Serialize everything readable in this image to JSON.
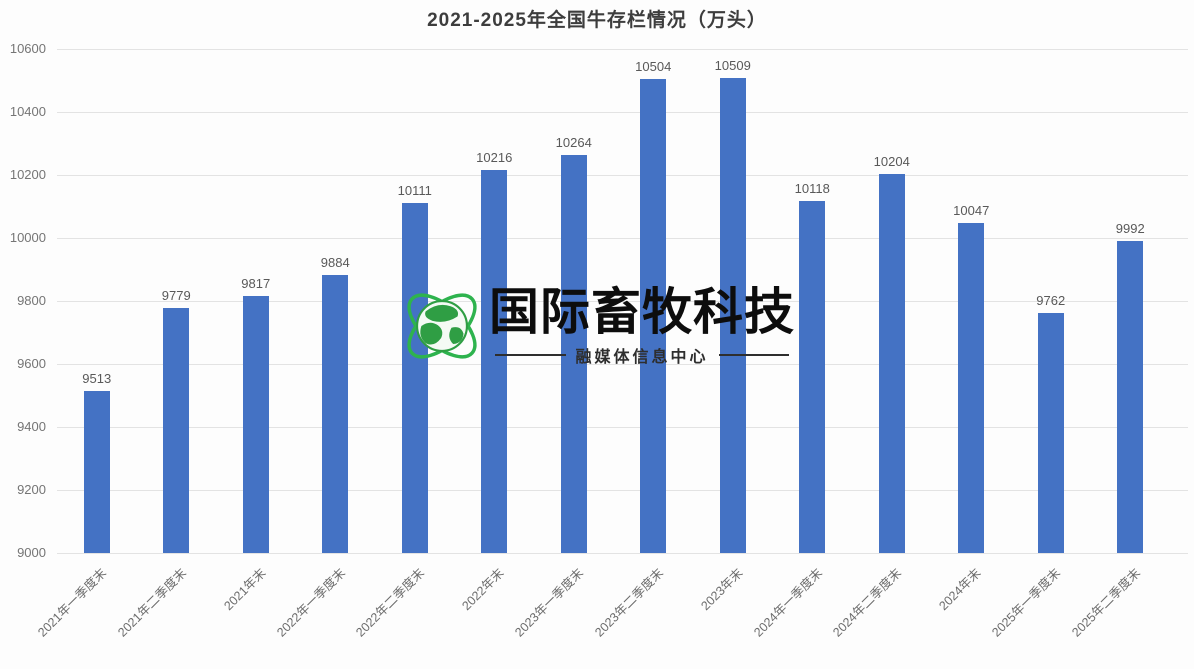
{
  "chart_data": {
    "type": "bar",
    "title": "2021-2025年全国牛存栏情况（万头）",
    "categories": [
      "2021年一季度末",
      "2021年二季度末",
      "2021年末",
      "2022年一季度末",
      "2022年二季度末",
      "2022年末",
      "2023年一季度末",
      "2023年二季度末",
      "2023年末",
      "2024年一季度末",
      "2024年二季度末",
      "2024年末",
      "2025年一季度末",
      "2025年二季度末"
    ],
    "values": [
      9513,
      9779,
      9817,
      9884,
      10111,
      10216,
      10264,
      10504,
      10509,
      10118,
      10204,
      10047,
      9762,
      9992
    ],
    "xlabel": "",
    "ylabel": "",
    "ylim": [
      9000,
      10600
    ],
    "yticks": [
      9000,
      9200,
      9400,
      9600,
      9800,
      10000,
      10200,
      10400,
      10600
    ],
    "grid": true,
    "legend": "none",
    "bar_color": "#4472C4",
    "value_labels_shown": true
  },
  "watermark": {
    "logo_icon": "globe-orbit-icon",
    "logo_color": "#2f9e44",
    "orbit_color": "#2eb34e",
    "title": "国际畜牧科技",
    "subtitle": "融媒体信息中心"
  }
}
